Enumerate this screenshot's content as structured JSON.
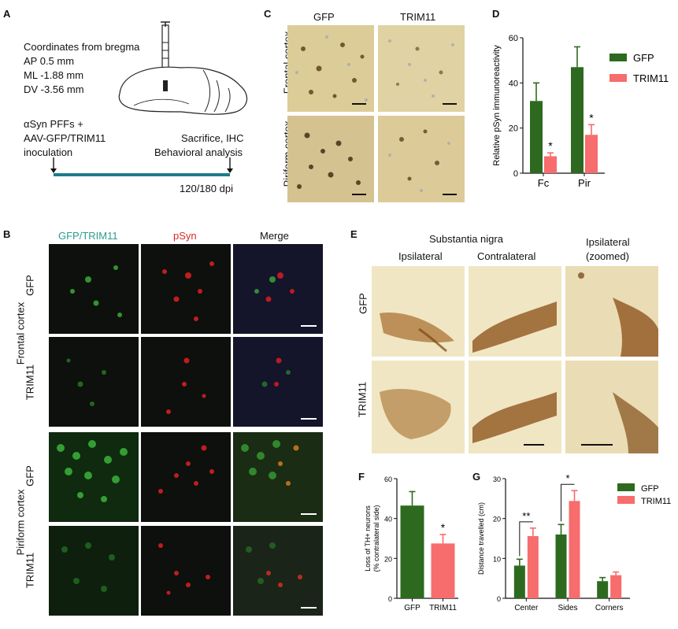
{
  "panelA": {
    "label": "A",
    "coords_title": "Coordinates from bregma",
    "coords": [
      "AP 0.5 mm",
      "ML -1.88 mm",
      "DV -3.56 mm"
    ],
    "inoculation": [
      "αSyn PFFs +",
      "AAV-GFP/TRIM11",
      "inoculation"
    ],
    "endpoint": [
      "Sacrifice, IHC",
      "Behavioral analysis"
    ],
    "timepoint": "120/180 dpi",
    "timeline_color": "#1f7a8c"
  },
  "panelB": {
    "label": "B",
    "col_headers": [
      "GFP/TRIM11",
      "pSyn",
      "Merge"
    ],
    "col_colors": [
      "#2a9d8f",
      "#d62828",
      "#111111"
    ],
    "row_labels": [
      "GFP",
      "TRIM11",
      "GFP",
      "TRIM11"
    ],
    "region_labels": [
      "Frontal cortex",
      "Piriform cortex"
    ]
  },
  "panelC": {
    "label": "C",
    "col_headers": [
      "GFP",
      "TRIM11"
    ],
    "row_labels": [
      "Frontal cortex",
      "Piriform cortex"
    ]
  },
  "panelE": {
    "label": "E",
    "super_header": "Substantia nigra",
    "col_headers": [
      "Ipsilateral",
      "Contralateral",
      "Ipsilateral",
      "(zoomed)"
    ],
    "row_labels": [
      "GFP",
      "TRIM11"
    ]
  },
  "panelD": {
    "label": "D"
  },
  "panelF": {
    "label": "F"
  },
  "panelG": {
    "label": "G"
  },
  "colors": {
    "gfp": "#2d6a1f",
    "trim11": "#f76c6c"
  },
  "chart_data": [
    {
      "panel": "D",
      "type": "bar",
      "categories": [
        "Fc",
        "Pir"
      ],
      "ylabel": "Relative pSyn immunoreactivity",
      "ylim": [
        0,
        60
      ],
      "yticks": [
        0,
        20,
        40,
        60
      ],
      "legend": "top-right",
      "series": [
        {
          "name": "GFP",
          "values": [
            32,
            47
          ],
          "errors": [
            8,
            9
          ]
        },
        {
          "name": "TRIM11",
          "values": [
            7.5,
            17
          ],
          "errors": [
            1.5,
            4.5
          ]
        }
      ],
      "significance": [
        "*",
        "*"
      ]
    },
    {
      "panel": "F",
      "type": "bar",
      "categories": [
        "GFP",
        "TRIM11"
      ],
      "ylabel": [
        "Loss of TH+ neurons",
        "(% contralateral side)"
      ],
      "ylim": [
        0,
        60
      ],
      "yticks": [
        0,
        20,
        40,
        60
      ],
      "values": [
        46.5,
        27.5
      ],
      "errors": [
        7,
        4.5
      ],
      "significance": "*"
    },
    {
      "panel": "G",
      "type": "bar",
      "categories": [
        "Center",
        "Sides",
        "Corners"
      ],
      "ylabel": "Distance travelled (cm)",
      "ylim": [
        0,
        30
      ],
      "yticks": [
        0,
        10,
        20,
        30
      ],
      "legend": "top-right",
      "series": [
        {
          "name": "GFP",
          "values": [
            8.2,
            16,
            4.3
          ],
          "errors": [
            1.6,
            2.5,
            0.9
          ]
        },
        {
          "name": "TRIM11",
          "values": [
            15.6,
            24.4,
            5.8
          ],
          "errors": [
            2,
            2.6,
            0.8
          ]
        }
      ],
      "significance": [
        "**",
        "*",
        ""
      ]
    }
  ]
}
